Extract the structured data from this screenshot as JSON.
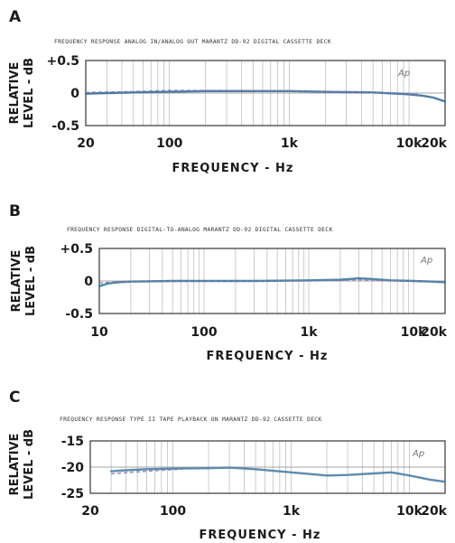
{
  "chart_data": [
    {
      "panel": "A",
      "type": "line",
      "title": "FREQUENCY RESPONSE  ANALOG IN/ANALOG OUT  MARANTZ DD-92 DIGITAL CASSETTE DECK",
      "xlabel": "FREQUENCY - Hz",
      "ylabel": [
        "RELATIVE",
        "LEVEL - dB"
      ],
      "x_scale": "log",
      "xlim": [
        20,
        20000
      ],
      "ylim": [
        -0.5,
        0.5
      ],
      "x_ticks": [
        {
          "value": 20,
          "label": "20"
        },
        {
          "value": 100,
          "label": "100"
        },
        {
          "value": 1000,
          "label": "1k"
        },
        {
          "value": 10000,
          "label": "10k"
        },
        {
          "value": 20000,
          "label": "20k"
        }
      ],
      "y_ticks": [
        {
          "value": 0.5,
          "label": "+0.5"
        },
        {
          "value": 0,
          "label": "0"
        },
        {
          "value": -0.5,
          "label": "-0.5"
        }
      ],
      "logo": "Ap",
      "series": [
        {
          "x": [
            20,
            30,
            50,
            100,
            200,
            500,
            1000,
            2000,
            5000,
            8000,
            10000,
            13000,
            16000,
            20000
          ],
          "y": [
            -0.01,
            0.0,
            0.01,
            0.02,
            0.03,
            0.03,
            0.03,
            0.02,
            0.01,
            -0.01,
            -0.02,
            -0.04,
            -0.07,
            -0.13
          ]
        },
        {
          "x": [
            20,
            40,
            100,
            300,
            1000,
            3000,
            8000,
            12000
          ],
          "y": [
            0.01,
            0.02,
            0.04,
            0.04,
            0.03,
            0.02,
            0.0,
            -0.02
          ]
        }
      ],
      "grid": true,
      "color": "#3a6f9a"
    },
    {
      "panel": "B",
      "type": "line",
      "title": "FREQUENCY RESPONSE  DIGITAL-TO-ANALOG  MARANTZ DD-92 DIGITAL CASSETTE DECK",
      "xlabel": "FREQUENCY - Hz",
      "ylabel": [
        "RELATIVE",
        "LEVEL - dB"
      ],
      "x_scale": "log",
      "xlim": [
        10,
        20000
      ],
      "ylim": [
        -0.5,
        0.5
      ],
      "x_ticks": [
        {
          "value": 10,
          "label": "10"
        },
        {
          "value": 100,
          "label": "100"
        },
        {
          "value": 1000,
          "label": "1k"
        },
        {
          "value": 10000,
          "label": "10k"
        },
        {
          "value": 20000,
          "label": "20k"
        }
      ],
      "y_ticks": [
        {
          "value": 0.5,
          "label": "+0.5"
        },
        {
          "value": 0,
          "label": "0"
        },
        {
          "value": -0.5,
          "label": "-0.5"
        }
      ],
      "logo": "Ap",
      "series": [
        {
          "x": [
            10,
            12,
            15,
            20,
            50,
            100,
            300,
            1000,
            2000,
            3000,
            4000,
            6000,
            10000,
            15000,
            20000
          ],
          "y": [
            -0.08,
            -0.04,
            -0.02,
            -0.01,
            0.0,
            0.0,
            0.0,
            0.01,
            0.02,
            0.04,
            0.03,
            0.01,
            0.0,
            -0.01,
            -0.02
          ]
        },
        {
          "x": [
            10,
            13,
            20,
            50,
            200,
            1000,
            3000,
            10000,
            20000
          ],
          "y": [
            -0.03,
            -0.02,
            -0.01,
            0.0,
            0.0,
            0.0,
            0.02,
            0.0,
            -0.01
          ]
        }
      ],
      "grid": true,
      "color": "#3a7a98"
    },
    {
      "panel": "C",
      "type": "line",
      "title": "FREQUENCY RESPONSE  TYPE II TAPE  PLAYBACK ON MARANTZ DD-92 CASSETTE DECK",
      "xlabel": "FREQUENCY - Hz",
      "ylabel": [
        "RELATIVE",
        "LEVEL - dB"
      ],
      "x_scale": "log",
      "xlim": [
        20,
        20000
      ],
      "ylim": [
        -25,
        -15
      ],
      "x_ticks": [
        {
          "value": 20,
          "label": "20"
        },
        {
          "value": 100,
          "label": "100"
        },
        {
          "value": 1000,
          "label": "1k"
        },
        {
          "value": 10000,
          "label": "10k"
        },
        {
          "value": 20000,
          "label": "20k"
        }
      ],
      "y_ticks": [
        {
          "value": -15,
          "label": "-15"
        },
        {
          "value": -20,
          "label": "-20"
        },
        {
          "value": -25,
          "label": "-25"
        }
      ],
      "logo": "Ap",
      "series": [
        {
          "x": [
            30,
            40,
            60,
            100,
            200,
            300,
            500,
            1000,
            2000,
            3000,
            5000,
            7000,
            10000,
            15000,
            20000
          ],
          "y": [
            -20.8,
            -20.6,
            -20.4,
            -20.3,
            -20.2,
            -20.1,
            -20.4,
            -21.0,
            -21.6,
            -21.5,
            -21.2,
            -21.0,
            -21.6,
            -22.4,
            -22.8
          ]
        },
        {
          "x": [
            30,
            50,
            80,
            120
          ],
          "y": [
            -21.3,
            -20.9,
            -20.6,
            -20.4
          ]
        }
      ],
      "grid": true,
      "color": "#4d7fa6"
    }
  ]
}
